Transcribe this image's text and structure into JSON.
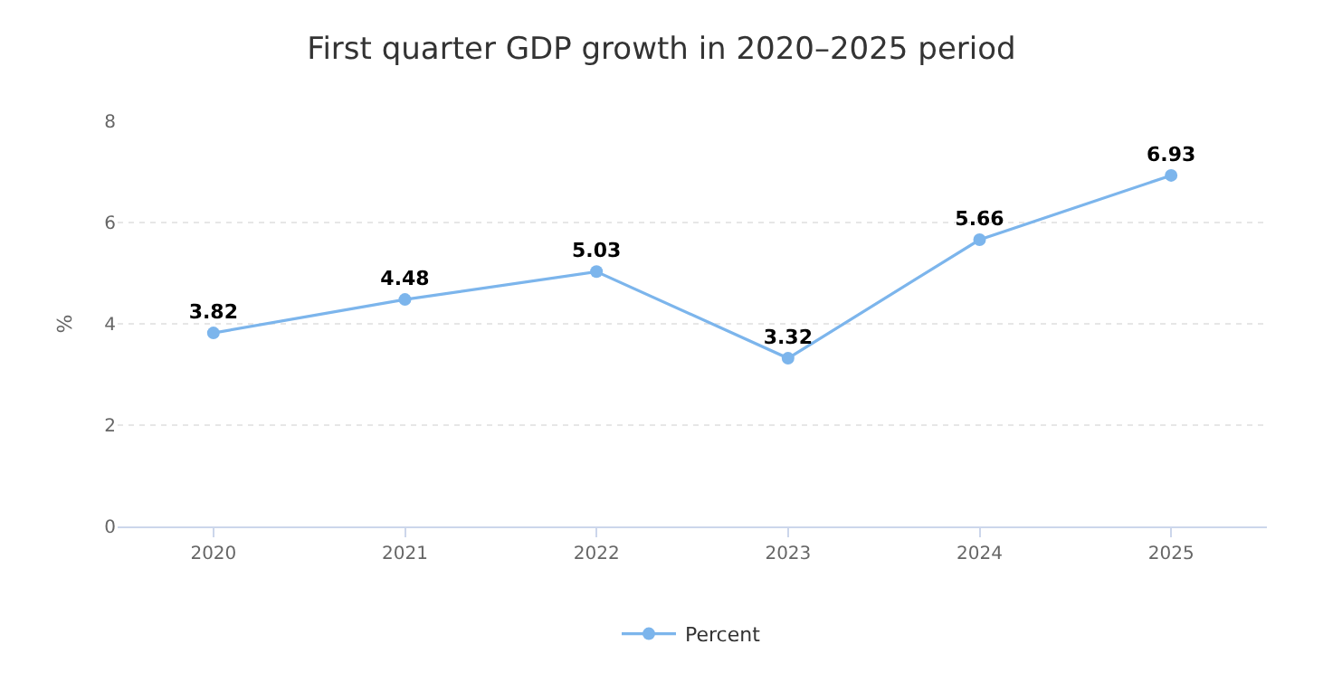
{
  "chart_data": {
    "type": "line",
    "title": "First quarter GDP growth in 2020–2025 period",
    "ylabel": "%",
    "categories": [
      "2020",
      "2021",
      "2022",
      "2023",
      "2024",
      "2025"
    ],
    "series": [
      {
        "name": "Percent",
        "color": "#7cb5ec",
        "values": [
          3.82,
          4.48,
          5.03,
          3.32,
          5.66,
          6.93
        ]
      }
    ],
    "ylim": [
      0,
      8
    ],
    "yticks": [
      0,
      2,
      4,
      6,
      8
    ],
    "grid": "y",
    "legend": "bottom",
    "marker": "circle",
    "line_style": "solid",
    "data_labels": true
  }
}
